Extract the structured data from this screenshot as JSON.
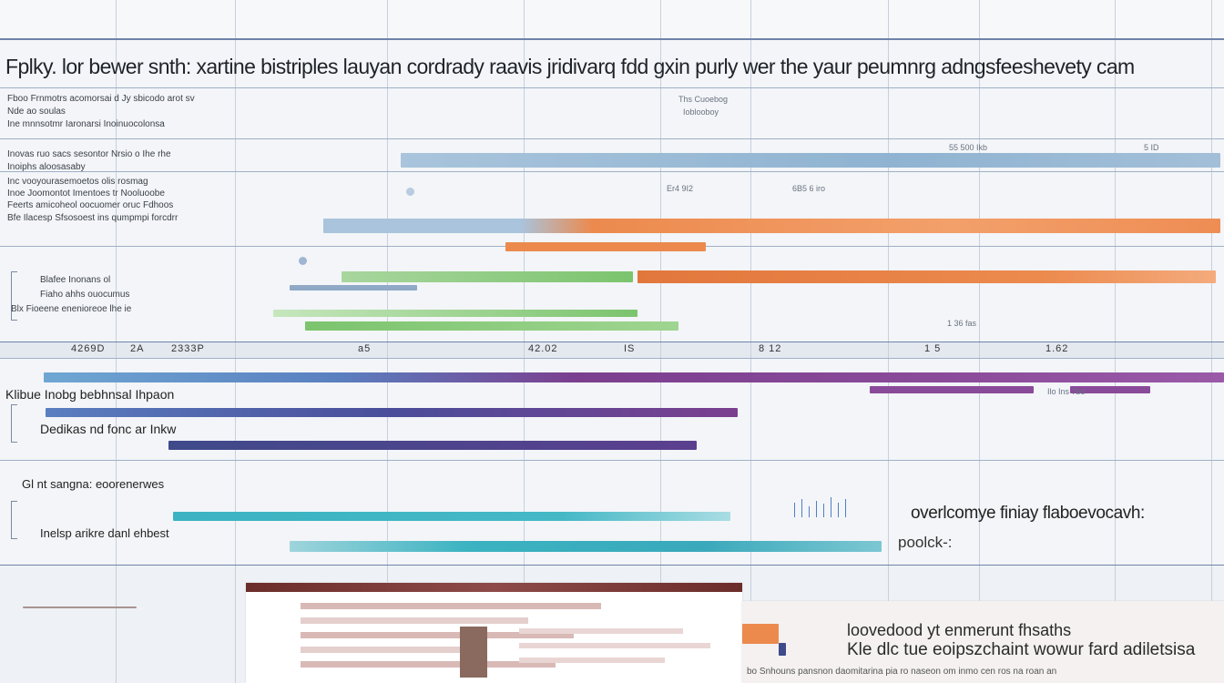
{
  "title": "Fplky. lor bewer snth: xartine bistriples lauyan cordrady raavis jridivarq fdd gxin purly wer the yaur peumnrg adngsfeeshevety cam",
  "colors": {
    "steel_blue": "#8fb3d1",
    "orange": "#ec8a4e",
    "green": "#7cc46e",
    "purple": "#7b3f8f",
    "navy": "#3f4a8a",
    "teal": "#3bb3c1",
    "dark_red": "#6b2d2a",
    "grid": "#c7d0dc"
  },
  "sections": [
    {
      "id": "s1",
      "labels": [
        "Fboo Frnmotrs acomorsai d Jy sbicodo arot sv",
        "Nde ao soulas",
        "Ine mnnsotmr Iaronarsi Inoinuocolonsa"
      ]
    },
    {
      "id": "s2",
      "labels": [
        "Inovas ruo sacs sesontor Nrsio o Ihe rhe",
        "Inoiphs aloosasaby",
        "Inc vooyourasemoetos olis rosmag",
        "Inoe Joomontot Imentoes tr Nooluoobe",
        "Feerts amicoheol oocuomer oruc Fdhoos",
        "Bfe Ilacesp Sfsosoest ins qumpmpi forcdrr"
      ]
    },
    {
      "id": "s3",
      "labels": [
        "Blafee Inonans ol",
        "Fiaho ahhs ouocumus",
        "Blx Fioeene enenioreoe lhe ie"
      ]
    },
    {
      "id": "s4",
      "labels": [
        "Klibue Inobg bebhnsal Ihpaon",
        "Dedikas nd fonc ar Inkw"
      ]
    },
    {
      "id": "s5",
      "labels": [
        "Gl nt sangna: eoorenerwes",
        "Inelsp arikre danl ehbest"
      ]
    }
  ],
  "axis_labels": [
    "4269D",
    "2A",
    "2333P",
    "a5",
    "42.02",
    "IS",
    "8 12",
    "1 5",
    "1.62"
  ],
  "annotations": {
    "a1": "overlcomye finiay flaboevocavh:",
    "a2": "poolck-:",
    "a3": "loovedood yt enmerunt fhsaths",
    "a4": "Kle dlc tue eoipszchaint wowur fard adiletsisa",
    "a5": "bo Snhouns pansnon daomitarina pia ro naseon om inmo cen ros na roan an"
  },
  "markers": [
    "55 500 Ikb",
    "5 ID",
    "Ths Cuoebog",
    "Ioblooboy",
    "6B5 6 iro",
    "Er4 9I2",
    "1 36 fas",
    "Ilo Ins 7bo"
  ]
}
